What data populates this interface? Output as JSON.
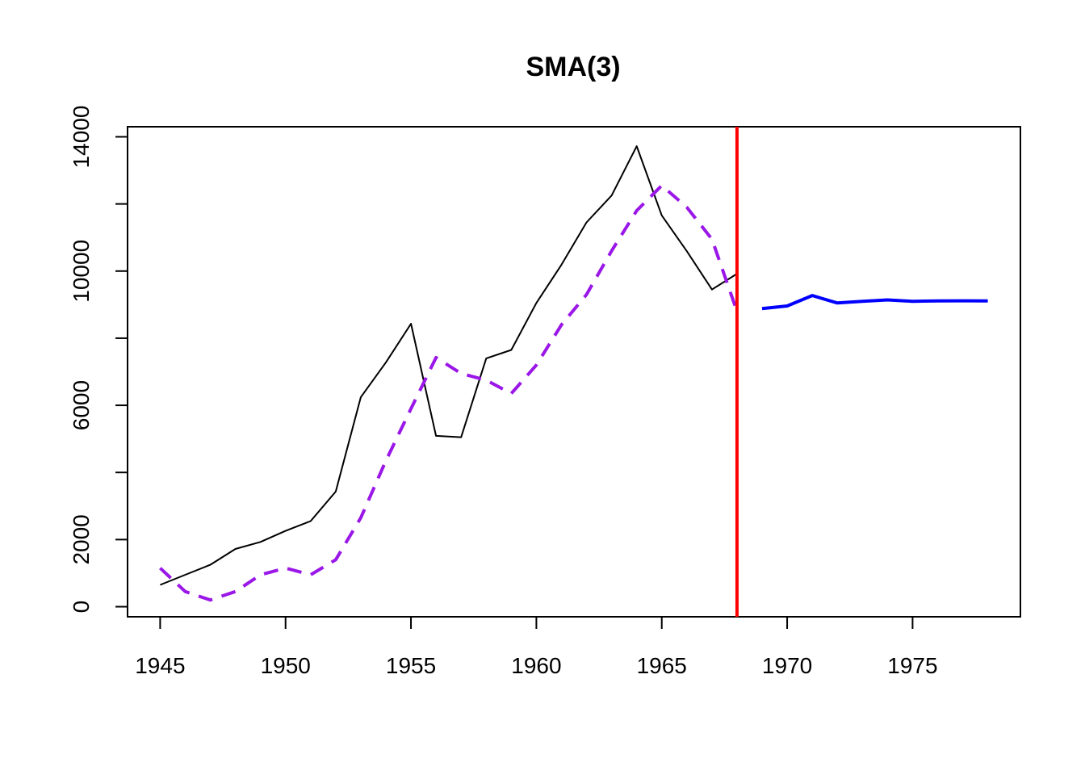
{
  "chart_data": {
    "type": "line",
    "title": "SMA(3)",
    "xlabel": "",
    "ylabel": "",
    "xlim": [
      1943.7,
      1979.3
    ],
    "ylim": [
      -300,
      14300
    ],
    "x_ticks": [
      1945,
      1950,
      1955,
      1960,
      1965,
      1970,
      1975
    ],
    "y_ticks": [
      0,
      2000,
      6000,
      10000,
      14000
    ],
    "y_minor_ticks": [
      4000,
      8000,
      12000
    ],
    "grid": false,
    "legend": "none",
    "cutoff_line": {
      "x": 1968,
      "color": "#ff0000"
    },
    "series": [
      {
        "color": "#000000",
        "style": "solid",
        "x": [
          1945,
          1946,
          1947,
          1948,
          1949,
          1950,
          1951,
          1952,
          1953,
          1954,
          1955,
          1956,
          1957,
          1958,
          1959,
          1960,
          1961,
          1962,
          1963,
          1964,
          1965,
          1966,
          1967,
          1968
        ],
        "values": [
          650,
          950,
          1250,
          1720,
          1930,
          2260,
          2550,
          3430,
          6240,
          7280,
          8430,
          5090,
          5050,
          7400,
          7650,
          9050,
          10190,
          11450,
          12250,
          13720,
          11660,
          10590,
          9450,
          9920
        ]
      },
      {
        "color": "#9a17e8",
        "style": "dashed",
        "x": [
          1945,
          1946,
          1947,
          1948,
          1949,
          1950,
          1951,
          1952,
          1953,
          1954,
          1955,
          1956,
          1957,
          1958,
          1959,
          1960,
          1961,
          1962,
          1963,
          1964,
          1965,
          1966,
          1967,
          1968
        ],
        "values": [
          1150,
          450,
          200,
          450,
          950,
          1150,
          950,
          1400,
          2650,
          4350,
          5900,
          7420,
          6950,
          6750,
          6350,
          7200,
          8400,
          9300,
          10600,
          11800,
          12550,
          11900,
          10950,
          8800
        ]
      },
      {
        "color": "#0000ff",
        "style": "solid",
        "x": [
          1969,
          1970,
          1971,
          1972,
          1973,
          1974,
          1975,
          1976,
          1977,
          1978
        ],
        "values": [
          8880,
          8960,
          9270,
          9050,
          9100,
          9140,
          9100,
          9110,
          9115,
          9110
        ]
      }
    ]
  }
}
